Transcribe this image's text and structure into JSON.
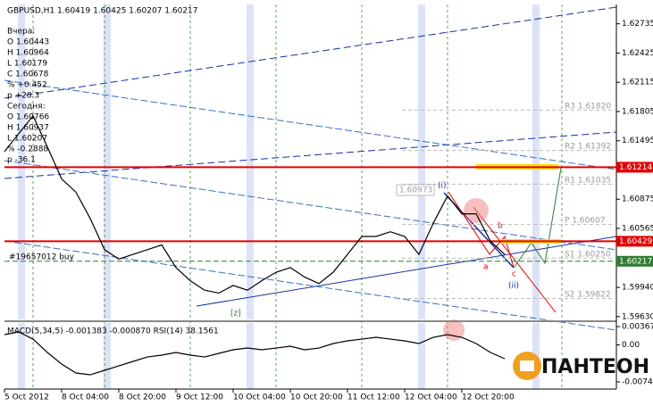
{
  "header": "GBPUSD,H1  1.60419 1.60425 1.60207 1.60217",
  "info_panel": [
    "Вчера:",
    "O 1.60443",
    "H 1.60964",
    "L 1.60179",
    "C 1.60678",
    "% +0.452",
    "р +28.3",
    "Сегодня:",
    "O 1.60766",
    "H 1.60937",
    "L 1.60207",
    "% -0.2888",
    "р -36.1"
  ],
  "order": "#19657012 buy",
  "box_label": "1.60973",
  "waves": [
    "(i)",
    "(ii)",
    "a",
    "b",
    "c",
    "[z]"
  ],
  "logo": "ПАНТЕОН",
  "pivots": [
    {
      "name": "R3",
      "value": 1.6182,
      "label": "1.61820"
    },
    {
      "name": "R2",
      "value": 1.61392,
      "label": "1.61392"
    },
    {
      "name": "R1",
      "value": 1.61035,
      "label": "1.61035"
    },
    {
      "name": "P",
      "value": 1.60607,
      "label": "1.60607"
    },
    {
      "name": "S1",
      "value": 1.6025,
      "label": "1.60250"
    },
    {
      "name": "S2",
      "value": 1.59822,
      "label": "1.59822"
    }
  ],
  "levels": [
    {
      "value": 1.61214,
      "color": "#e00000"
    },
    {
      "value": 1.60429,
      "color": "#e00000"
    },
    {
      "value": 1.60217,
      "color": "#2e7d32"
    }
  ],
  "chart_data": [
    {
      "type": "line",
      "color": "#000000",
      "categories": [
        "5 Oct 2012",
        null,
        null,
        null,
        "8 Oct 04:00",
        null,
        null,
        null,
        "8 Oct 20:00",
        null,
        null,
        null,
        "9 Oct 12:00",
        null,
        null,
        null,
        "10 Oct 04:00",
        null,
        null,
        null,
        "10 Oct 20:00",
        null,
        null,
        null,
        "11 Oct 12:00",
        null,
        null,
        null,
        "12 Oct 04:00",
        null,
        null,
        null,
        "12 Oct 20:00",
        null,
        null,
        null
      ],
      "values": [
        1.6138,
        1.6157,
        1.6176,
        1.6143,
        1.6109,
        1.6095,
        1.6067,
        1.6034,
        1.6024,
        1.6029,
        1.6034,
        1.6039,
        1.6015,
        1.6001,
        1.5991,
        1.5988,
        1.5996,
        1.5991,
        1.6001,
        1.601,
        1.6015,
        1.6005,
        1.5998,
        1.601,
        1.6029,
        1.6048,
        1.6048,
        1.6053,
        1.6048,
        1.6029,
        1.6062,
        1.6091,
        1.6072,
        1.6072,
        1.6043,
        1.6029
      ],
      "ylim": [
        1.596,
        1.6294
      ],
      "yticks": [
        1.62735,
        1.62425,
        1.62115,
        1.61805,
        1.61495,
        1.60875,
        1.60565,
        {
          "value": 1.5994,
          "label": "1.59940"
        },
        {
          "value": 1.5963,
          "label": "1.59630"
        }
      ]
    },
    {
      "type": "line",
      "title": "MACD(5,34,5) -0.001383 -0.000870 RSI(14) 38.1561",
      "color": "#000000",
      "values": [
        0.00206,
        0.0026,
        0.00116,
        -0.00152,
        -0.00385,
        -0.00564,
        -0.006,
        -0.0051,
        -0.00421,
        -0.00331,
        -0.00242,
        -0.00206,
        -0.00152,
        -0.00206,
        -0.00242,
        -0.0017,
        -0.00098,
        -0.00063,
        -0.00098,
        -0.00063,
        -0.00027,
        -0.00098,
        -0.00063,
        0.00027,
        0.00081,
        0.00116,
        0.00152,
        0.00116,
        0.00081,
        0.00027,
        0.00152,
        0.00206,
        0.00152,
        0.00027,
        -0.00152,
        -0.00277
      ],
      "ylim": [
        -0.00886,
        0.00439
      ],
      "yticks": [
        0.003673,
        {
          "value": 0,
          "label": "0.00"
        },
        -0.00743
      ]
    }
  ]
}
